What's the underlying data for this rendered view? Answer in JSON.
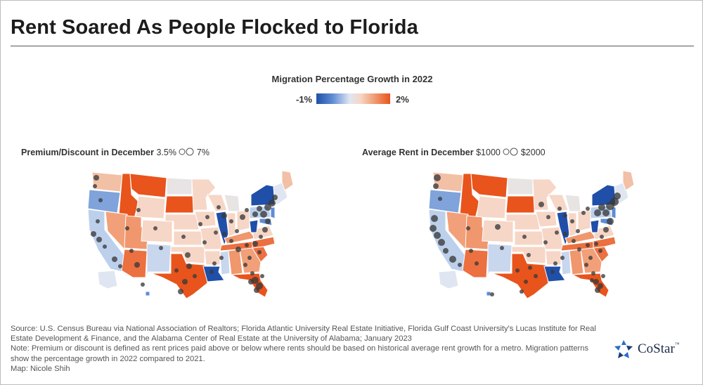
{
  "title": "Rent Soared As People Flocked to Florida",
  "legend": {
    "title": "Migration Percentage Growth in 2022",
    "min_label": "-1%",
    "max_label": "2%",
    "colors": [
      "#1f4fa8",
      "#dfe6f1",
      "#e8541c"
    ]
  },
  "left_map": {
    "title": "Premium/Discount in December",
    "size_small_label": "3.5%",
    "size_large_label": "7%"
  },
  "right_map": {
    "title": "Average Rent in December",
    "size_small_label": "$1000",
    "size_large_label": "$2000"
  },
  "footer": {
    "source": "Source: U.S. Census Bureau via National Association of Realtors; Florida Atlantic University Real Estate Initiative, Florida Gulf Coast University's Lucas Institute for Real Estate Development & Finance, and the Alabama Center of Real Estate at the University of Alabama; January 2023",
    "note": "Note: Premium or discount is defined as rent prices paid above or below where rents should be based on historical average rent growth for a metro. Migration patterns show the percentage growth in 2022 compared to 2021.",
    "credit": "Map: Nicole Shih"
  },
  "logo": {
    "name": "CoStar",
    "tm": "™"
  }
}
